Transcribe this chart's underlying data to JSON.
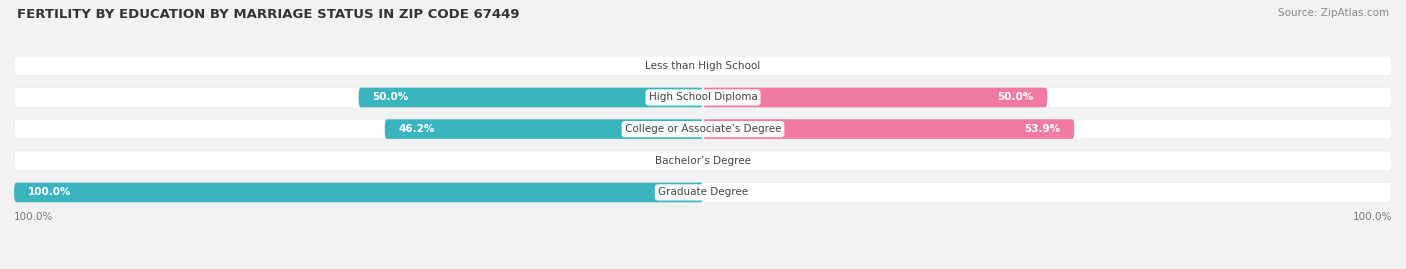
{
  "title": "FERTILITY BY EDUCATION BY MARRIAGE STATUS IN ZIP CODE 67449",
  "source": "Source: ZipAtlas.com",
  "categories": [
    "Less than High School",
    "High School Diploma",
    "College or Associate’s Degree",
    "Bachelor’s Degree",
    "Graduate Degree"
  ],
  "married_values": [
    0.0,
    50.0,
    46.2,
    0.0,
    100.0
  ],
  "unmarried_values": [
    0.0,
    50.0,
    53.9,
    0.0,
    0.0
  ],
  "married_color": "#3ab5c0",
  "unmarried_color": "#f07aA0",
  "married_light_color": "#9dd4da",
  "unmarried_light_color": "#f5b8cc",
  "bg_color": "#f2f2f2",
  "row_bg_color": "#f8f8f8",
  "row_alt_bg_color": "#efefef",
  "title_fontsize": 9.5,
  "source_fontsize": 7.5,
  "label_fontsize": 7.5,
  "cat_fontsize": 7.5,
  "legend_fontsize": 8,
  "axis_label_fontsize": 7.5,
  "bar_height": 0.62,
  "xlim": [
    -100,
    100
  ],
  "n_categories": 5
}
